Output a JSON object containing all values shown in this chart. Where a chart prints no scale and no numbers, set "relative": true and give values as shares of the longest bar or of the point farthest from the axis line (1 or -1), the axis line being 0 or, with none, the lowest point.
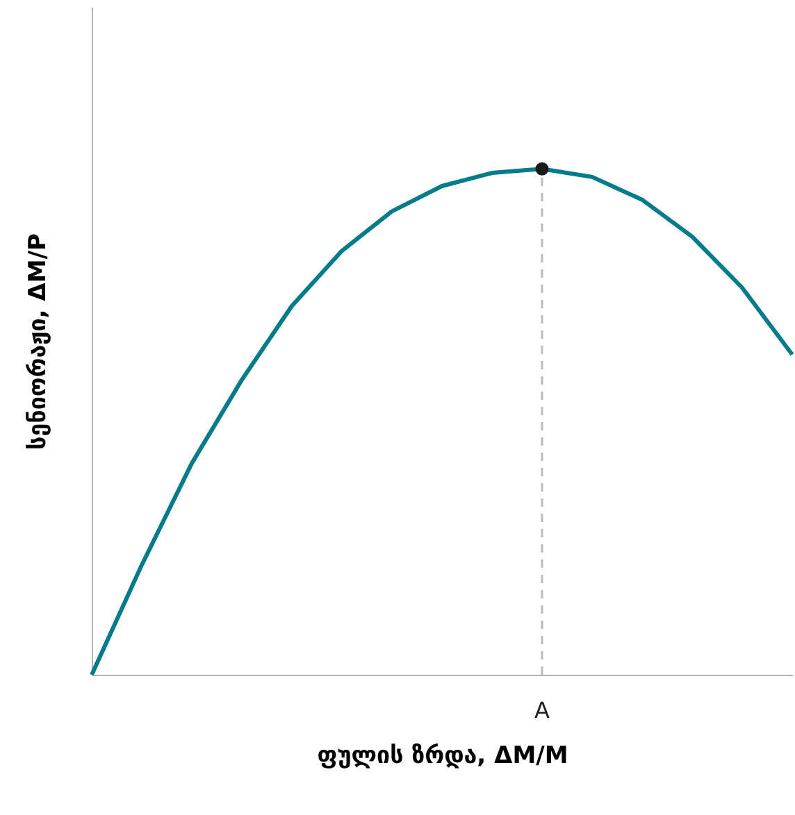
{
  "chart_data": {
    "type": "line",
    "relative": true,
    "xlabel": "ფულის ზრდა, ΔM/M",
    "ylabel": "სენიორაჟი, ΔM/P",
    "categories": [
      null,
      null,
      null,
      null,
      null,
      null,
      null,
      null,
      null,
      null,
      null,
      null,
      null,
      null,
      null
    ],
    "series": [
      {
        "color": "#007b8a",
        "values": [
          0,
          0.217,
          0.418,
          0.583,
          0.729,
          0.838,
          0.916,
          0.966,
          0.992,
          1,
          0.984,
          0.939,
          0.866,
          0.765,
          0.633
        ]
      }
    ],
    "annotations": [
      "A"
    ],
    "marker": "none",
    "line_style": "solid"
  }
}
